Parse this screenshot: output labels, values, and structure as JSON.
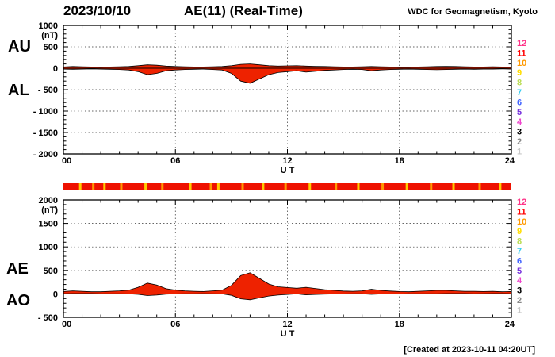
{
  "header": {
    "date": "2023/10/10",
    "title": "AE(11) (Real-Time)",
    "source": "WDC for Geomagnetism, Kyoto"
  },
  "footer": {
    "created_note": "[Created at 2023-10-11 04:20UT]"
  },
  "colors": {
    "background": "#ffffff",
    "trace_fill": "#ee2200",
    "trace_stroke": "#000000",
    "gridline": "#333333"
  },
  "x_axis": {
    "label": "U T",
    "tick_labels": [
      "00",
      "06",
      "12",
      "18",
      "24"
    ],
    "tick_hours": [
      0,
      6,
      12,
      18,
      24
    ],
    "range_hours": [
      0,
      24
    ]
  },
  "legend": {
    "station_counts": [
      "12",
      "11",
      "10",
      "9",
      "8",
      "7",
      "6",
      "5",
      "4",
      "3",
      "2",
      "1"
    ],
    "station_colors": [
      "#ff3388",
      "#ff0000",
      "#ff9900",
      "#ffdd00",
      "#bbdd55",
      "#33ccee",
      "#4466ff",
      "#7733dd",
      "#ee44cc",
      "#000000",
      "#888888",
      "#c8c8c8"
    ]
  },
  "quality_bar": {
    "color": "#ee1100",
    "tick_marks": [
      {
        "hour": 0.9,
        "color": "#ffcc00"
      },
      {
        "hour": 1.6,
        "color": "#ff9900"
      },
      {
        "hour": 2.2,
        "color": "#ffcc00"
      },
      {
        "hour": 3.1,
        "color": "#ff9900"
      },
      {
        "hour": 4.4,
        "color": "#ffcc00"
      },
      {
        "hour": 5.3,
        "color": "#ff9900"
      },
      {
        "hour": 6.8,
        "color": "#ffcc00"
      },
      {
        "hour": 7.9,
        "color": "#ff9900"
      },
      {
        "hour": 8.3,
        "color": "#ffcc00"
      },
      {
        "hour": 9.6,
        "color": "#ff9900"
      },
      {
        "hour": 10.7,
        "color": "#ffcc00"
      },
      {
        "hour": 11.9,
        "color": "#ff9900"
      },
      {
        "hour": 13.2,
        "color": "#ffcc00"
      },
      {
        "hour": 14.6,
        "color": "#ff9900"
      },
      {
        "hour": 15.8,
        "color": "#ffcc00"
      },
      {
        "hour": 17.1,
        "color": "#ff9900"
      },
      {
        "hour": 18.4,
        "color": "#ffcc00"
      },
      {
        "hour": 19.7,
        "color": "#ff9900"
      },
      {
        "hour": 20.9,
        "color": "#ffcc00"
      },
      {
        "hour": 22.3,
        "color": "#ff9900"
      },
      {
        "hour": 23.4,
        "color": "#ffcc00"
      }
    ]
  },
  "chart_data": [
    {
      "type": "area",
      "panel": "AU-AL",
      "left_labels": [
        "AU",
        "AL"
      ],
      "unit": "(nT)",
      "ylim": [
        -2000,
        1000
      ],
      "y_ticks": [
        1000,
        500,
        0,
        -500,
        -1000,
        -1500,
        -2000
      ],
      "x_hours": [
        0,
        0.5,
        1,
        1.5,
        2,
        2.5,
        3,
        3.5,
        4,
        4.5,
        5,
        5.5,
        6,
        6.5,
        7,
        7.5,
        8,
        8.5,
        9,
        9.5,
        10,
        10.5,
        11,
        11.5,
        12,
        12.5,
        13,
        13.5,
        14,
        14.5,
        15,
        15.5,
        16,
        16.5,
        17,
        17.5,
        18,
        18.5,
        19,
        19.5,
        20,
        20.5,
        21,
        21.5,
        22,
        22.5,
        23,
        23.5,
        24
      ],
      "series": [
        {
          "name": "AU",
          "values": [
            30,
            40,
            35,
            30,
            25,
            30,
            35,
            40,
            60,
            80,
            70,
            50,
            40,
            35,
            30,
            30,
            35,
            40,
            60,
            90,
            100,
            80,
            60,
            50,
            55,
            60,
            50,
            45,
            40,
            35,
            30,
            30,
            35,
            40,
            35,
            30,
            25,
            25,
            30,
            35,
            40,
            45,
            40,
            35,
            30,
            30,
            35,
            30,
            30
          ]
        },
        {
          "name": "AL",
          "values": [
            -20,
            -25,
            -20,
            -15,
            -20,
            -25,
            -30,
            -40,
            -80,
            -150,
            -120,
            -60,
            -40,
            -30,
            -25,
            -20,
            -30,
            -40,
            -120,
            -300,
            -350,
            -250,
            -150,
            -100,
            -80,
            -60,
            -90,
            -70,
            -50,
            -40,
            -30,
            -25,
            -30,
            -60,
            -40,
            -30,
            -25,
            -20,
            -25,
            -30,
            -35,
            -30,
            -25,
            -20,
            -25,
            -20,
            -20,
            -15,
            -20
          ]
        }
      ]
    },
    {
      "type": "area",
      "panel": "AE-AO",
      "left_labels": [
        "AE",
        "AO"
      ],
      "unit": "(nT)",
      "ylim": [
        -500,
        2000
      ],
      "y_ticks": [
        2000,
        1500,
        1000,
        500,
        0,
        -500
      ],
      "x_hours": [
        0,
        0.5,
        1,
        1.5,
        2,
        2.5,
        3,
        3.5,
        4,
        4.5,
        5,
        5.5,
        6,
        6.5,
        7,
        7.5,
        8,
        8.5,
        9,
        9.5,
        10,
        10.5,
        11,
        11.5,
        12,
        12.5,
        13,
        13.5,
        14,
        14.5,
        15,
        15.5,
        16,
        16.5,
        17,
        17.5,
        18,
        18.5,
        19,
        19.5,
        20,
        20.5,
        21,
        21.5,
        22,
        22.5,
        23,
        23.5,
        24
      ],
      "series": [
        {
          "name": "AE",
          "values": [
            50,
            65,
            55,
            45,
            45,
            55,
            65,
            80,
            140,
            230,
            190,
            110,
            80,
            65,
            55,
            50,
            65,
            80,
            180,
            390,
            450,
            330,
            210,
            150,
            135,
            120,
            140,
            115,
            90,
            75,
            60,
            55,
            65,
            100,
            75,
            60,
            50,
            45,
            55,
            65,
            75,
            75,
            65,
            55,
            55,
            50,
            55,
            45,
            50
          ]
        },
        {
          "name": "AO",
          "values": [
            5,
            7,
            7,
            7,
            2,
            2,
            2,
            0,
            -10,
            -35,
            -25,
            -5,
            0,
            2,
            2,
            5,
            2,
            0,
            -30,
            -105,
            -125,
            -85,
            -45,
            -25,
            -12,
            0,
            -20,
            -12,
            -5,
            -2,
            0,
            2,
            2,
            -10,
            -2,
            0,
            0,
            2,
            2,
            2,
            2,
            7,
            7,
            7,
            2,
            5,
            7,
            7,
            5
          ]
        }
      ]
    }
  ]
}
